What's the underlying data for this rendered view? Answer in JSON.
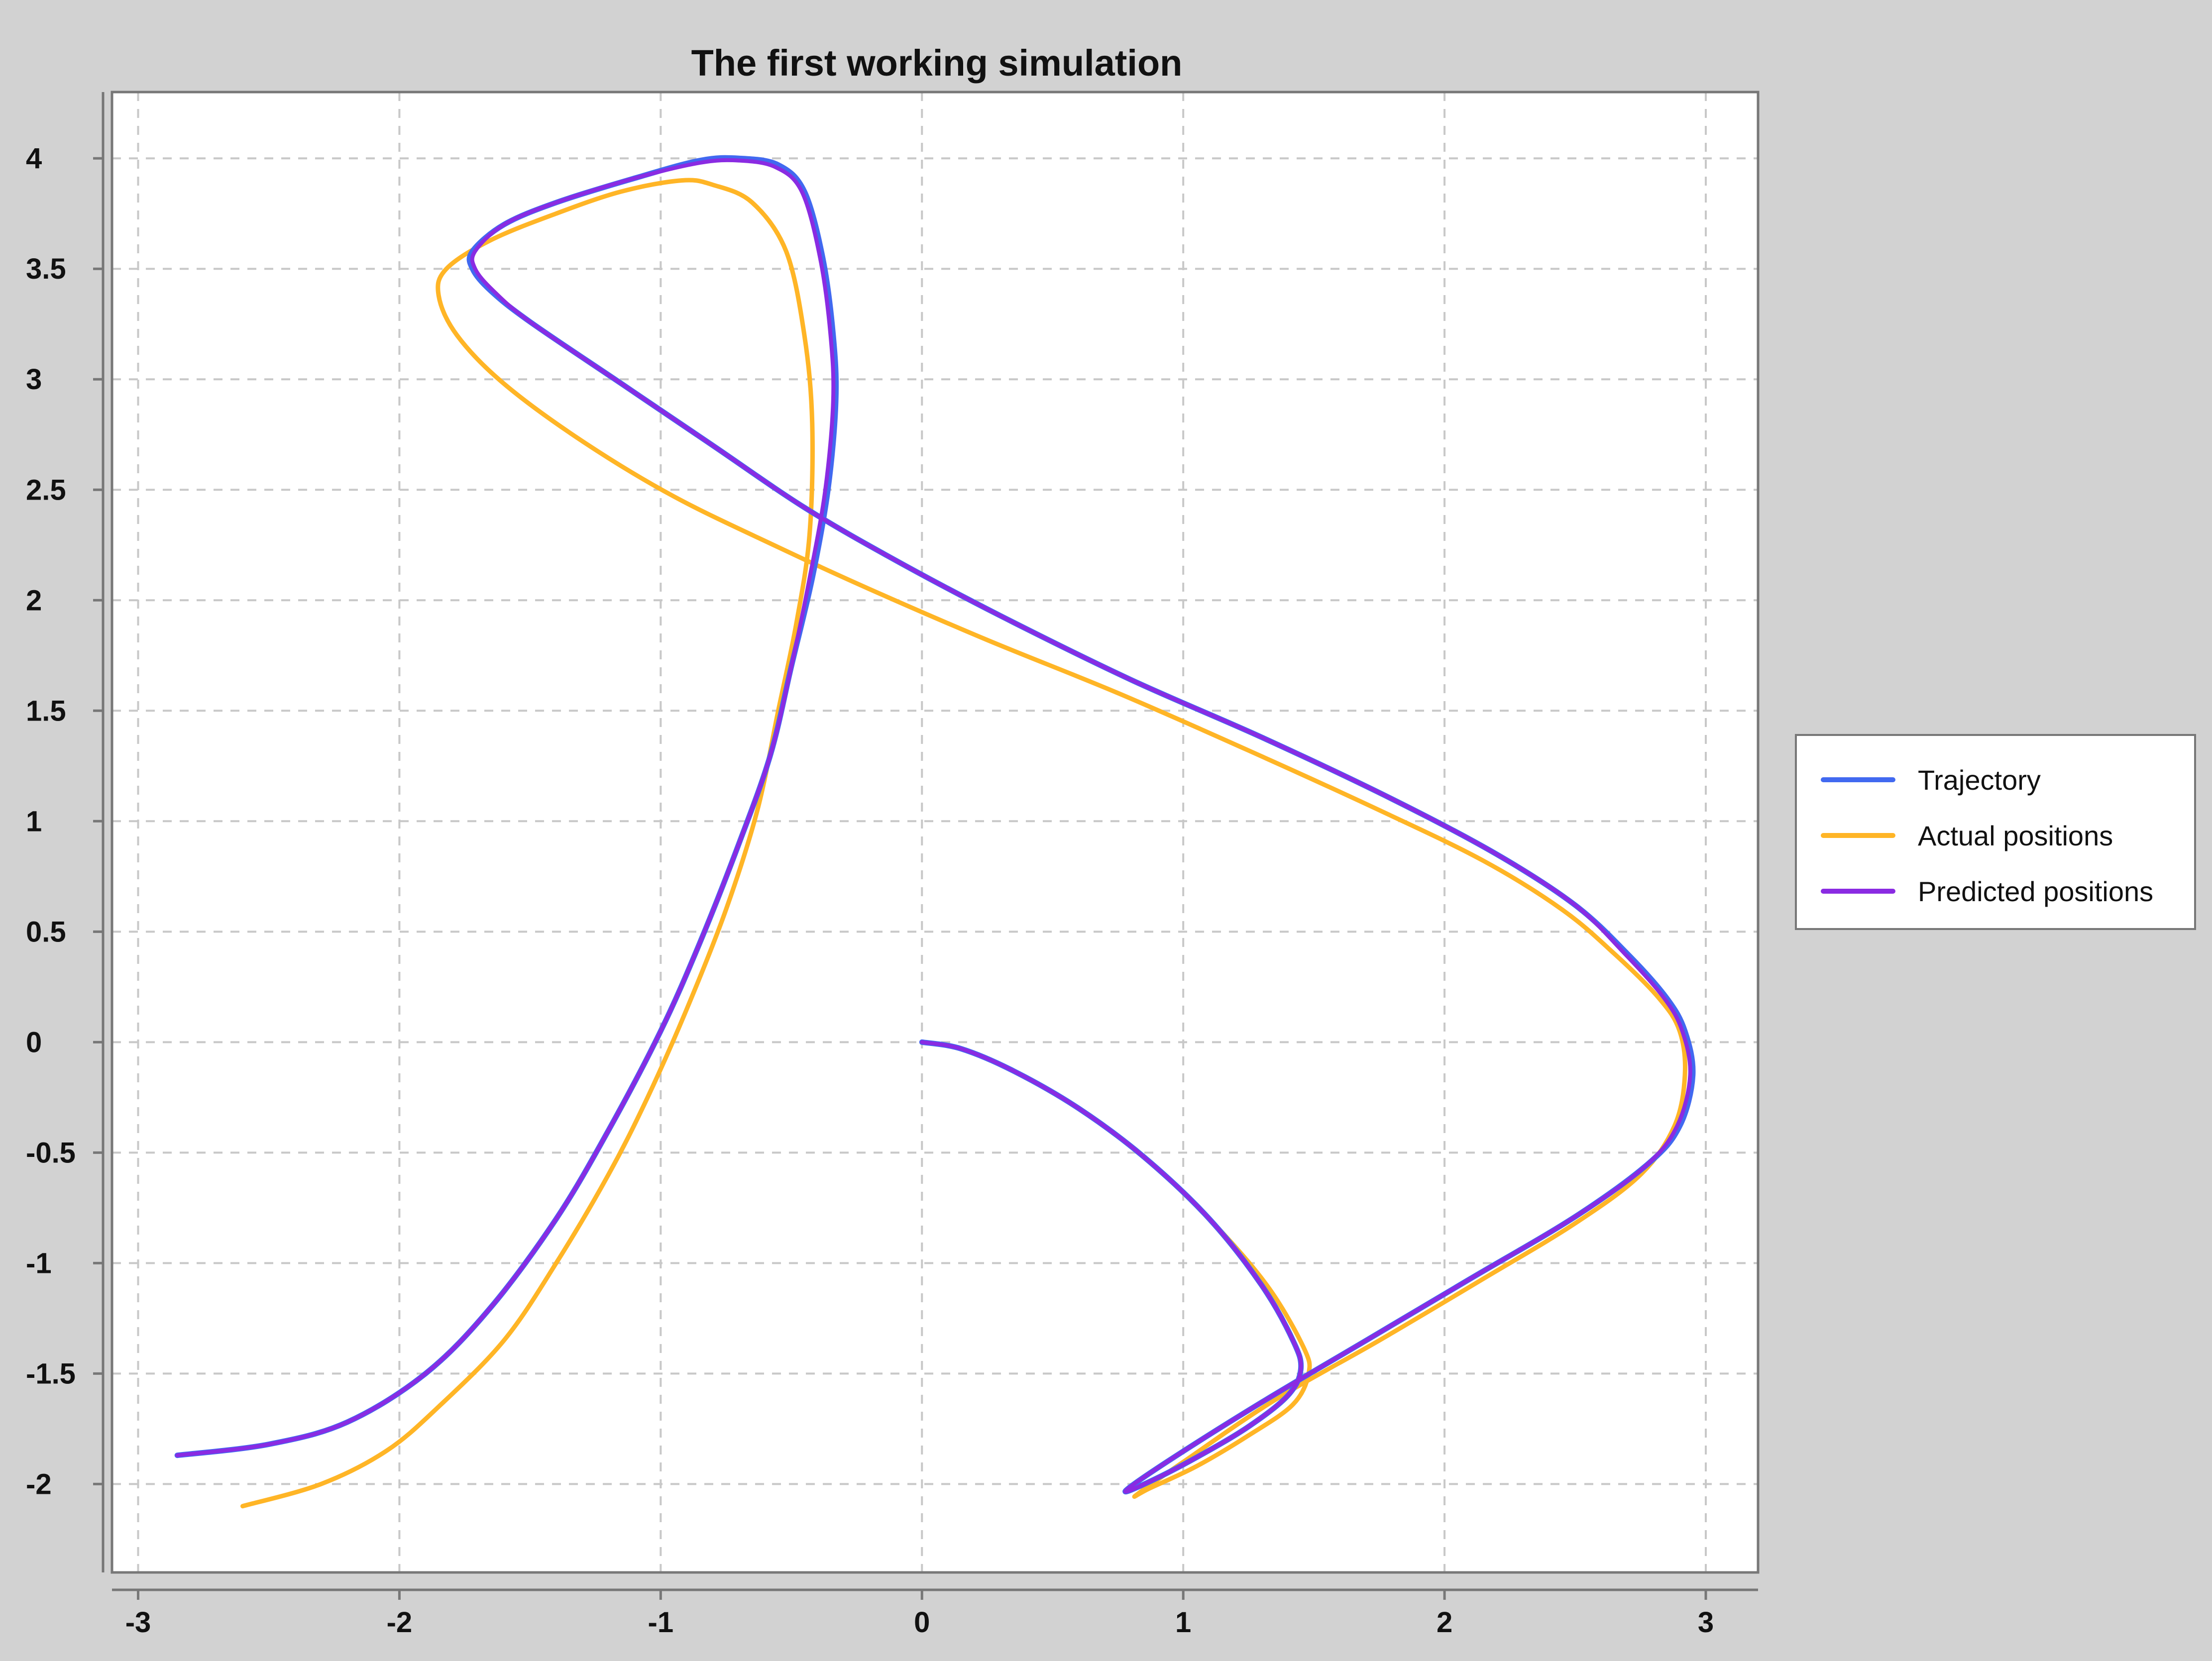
{
  "colors": {
    "background": "#d2d2d2",
    "plot_background": "#ffffff",
    "grid": "#c8c8c8",
    "axis": "#777777",
    "trajectory": "#4169f0",
    "actual": "#ffb526",
    "predicted": "#8a2be2"
  },
  "chart_data": {
    "type": "line",
    "title": "The first working simulation",
    "xlabel": "",
    "ylabel": "",
    "xlim": [
      -3.1,
      3.2
    ],
    "ylim": [
      -2.4,
      4.3
    ],
    "x_ticks": [
      -3,
      -2,
      -1,
      0,
      1,
      2,
      3
    ],
    "x_tick_labels": [
      "-3",
      "-2",
      "-1",
      "0",
      "1",
      "2",
      "3"
    ],
    "y_ticks": [
      -2,
      -1.5,
      -1,
      -0.5,
      0,
      0.5,
      1,
      1.5,
      2,
      2.5,
      3,
      3.5,
      4
    ],
    "y_tick_labels": [
      "-2",
      "-1.5",
      "-1",
      "-0.5",
      "0",
      "0.5",
      "1",
      "1.5",
      "2",
      "2.5",
      "3",
      "3.5",
      "4"
    ],
    "grid": true,
    "grid_style": "dashed",
    "legend_position": "right",
    "series": [
      {
        "name": "Trajectory",
        "color": "#4169f0",
        "points": [
          [
            0.0,
            0.0
          ],
          [
            0.15,
            -0.03
          ],
          [
            0.35,
            -0.13
          ],
          [
            0.6,
            -0.3
          ],
          [
            0.85,
            -0.52
          ],
          [
            1.1,
            -0.8
          ],
          [
            1.3,
            -1.1
          ],
          [
            1.42,
            -1.35
          ],
          [
            1.45,
            -1.48
          ],
          [
            1.4,
            -1.6
          ],
          [
            1.25,
            -1.74
          ],
          [
            1.05,
            -1.88
          ],
          [
            0.87,
            -1.99
          ],
          [
            0.78,
            -2.03
          ],
          [
            0.95,
            -1.89
          ],
          [
            1.3,
            -1.63
          ],
          [
            1.7,
            -1.35
          ],
          [
            2.1,
            -1.07
          ],
          [
            2.5,
            -0.79
          ],
          [
            2.78,
            -0.55
          ],
          [
            2.9,
            -0.38
          ],
          [
            2.95,
            -0.15
          ],
          [
            2.92,
            0.05
          ],
          [
            2.85,
            0.2
          ],
          [
            2.7,
            0.4
          ],
          [
            2.5,
            0.62
          ],
          [
            2.2,
            0.85
          ],
          [
            1.8,
            1.1
          ],
          [
            1.3,
            1.38
          ],
          [
            0.8,
            1.64
          ],
          [
            0.3,
            1.93
          ],
          [
            -0.1,
            2.18
          ],
          [
            -0.45,
            2.42
          ],
          [
            -0.8,
            2.7
          ],
          [
            -1.15,
            2.98
          ],
          [
            -1.5,
            3.26
          ],
          [
            -1.65,
            3.4
          ],
          [
            -1.72,
            3.5
          ],
          [
            -1.72,
            3.58
          ],
          [
            -1.6,
            3.7
          ],
          [
            -1.4,
            3.8
          ],
          [
            -1.1,
            3.91
          ],
          [
            -0.85,
            3.99
          ],
          [
            -0.7,
            4.0
          ],
          [
            -0.55,
            3.97
          ],
          [
            -0.45,
            3.85
          ],
          [
            -0.38,
            3.55
          ],
          [
            -0.34,
            3.2
          ],
          [
            -0.33,
            2.9
          ],
          [
            -0.36,
            2.5
          ],
          [
            -0.42,
            2.1
          ],
          [
            -0.5,
            1.7
          ],
          [
            -0.58,
            1.3
          ],
          [
            -0.7,
            0.9
          ],
          [
            -0.85,
            0.45
          ],
          [
            -1.0,
            0.05
          ],
          [
            -1.2,
            -0.4
          ],
          [
            -1.4,
            -0.8
          ],
          [
            -1.65,
            -1.2
          ],
          [
            -1.9,
            -1.5
          ],
          [
            -2.2,
            -1.72
          ],
          [
            -2.5,
            -1.82
          ],
          [
            -2.85,
            -1.87
          ]
        ]
      },
      {
        "name": "Actual positions",
        "color": "#ffb526",
        "points": [
          [
            0.0,
            0.0
          ],
          [
            0.15,
            -0.03
          ],
          [
            0.35,
            -0.13
          ],
          [
            0.6,
            -0.3
          ],
          [
            0.85,
            -0.52
          ],
          [
            1.1,
            -0.8
          ],
          [
            1.32,
            -1.1
          ],
          [
            1.46,
            -1.38
          ],
          [
            1.48,
            -1.5
          ],
          [
            1.42,
            -1.64
          ],
          [
            1.25,
            -1.78
          ],
          [
            1.05,
            -1.92
          ],
          [
            0.87,
            -2.02
          ],
          [
            0.82,
            -2.05
          ],
          [
            1.0,
            -1.9
          ],
          [
            1.35,
            -1.62
          ],
          [
            1.75,
            -1.35
          ],
          [
            2.15,
            -1.07
          ],
          [
            2.5,
            -0.82
          ],
          [
            2.75,
            -0.6
          ],
          [
            2.88,
            -0.38
          ],
          [
            2.92,
            -0.15
          ],
          [
            2.9,
            0.05
          ],
          [
            2.82,
            0.2
          ],
          [
            2.65,
            0.4
          ],
          [
            2.45,
            0.6
          ],
          [
            2.15,
            0.82
          ],
          [
            1.75,
            1.05
          ],
          [
            1.25,
            1.32
          ],
          [
            0.75,
            1.58
          ],
          [
            0.25,
            1.82
          ],
          [
            -0.2,
            2.05
          ],
          [
            -0.55,
            2.24
          ],
          [
            -0.95,
            2.47
          ],
          [
            -1.3,
            2.72
          ],
          [
            -1.6,
            2.98
          ],
          [
            -1.78,
            3.2
          ],
          [
            -1.85,
            3.38
          ],
          [
            -1.82,
            3.5
          ],
          [
            -1.65,
            3.63
          ],
          [
            -1.4,
            3.75
          ],
          [
            -1.15,
            3.85
          ],
          [
            -0.92,
            3.9
          ],
          [
            -0.8,
            3.88
          ],
          [
            -0.65,
            3.8
          ],
          [
            -0.52,
            3.58
          ],
          [
            -0.45,
            3.2
          ],
          [
            -0.42,
            2.8
          ],
          [
            -0.43,
            2.3
          ],
          [
            -0.48,
            1.9
          ],
          [
            -0.55,
            1.5
          ],
          [
            -0.63,
            1.05
          ],
          [
            -0.75,
            0.6
          ],
          [
            -0.9,
            0.15
          ],
          [
            -1.05,
            -0.25
          ],
          [
            -1.2,
            -0.6
          ],
          [
            -1.4,
            -1.0
          ],
          [
            -1.6,
            -1.35
          ],
          [
            -1.85,
            -1.65
          ],
          [
            -2.05,
            -1.85
          ],
          [
            -2.3,
            -2.0
          ],
          [
            -2.6,
            -2.1
          ]
        ]
      },
      {
        "name": "Predicted positions",
        "color": "#8a2be2",
        "points": [
          [
            0.0,
            0.0
          ],
          [
            0.15,
            -0.03
          ],
          [
            0.35,
            -0.13
          ],
          [
            0.6,
            -0.3
          ],
          [
            0.85,
            -0.52
          ],
          [
            1.1,
            -0.8
          ],
          [
            1.3,
            -1.1
          ],
          [
            1.42,
            -1.35
          ],
          [
            1.45,
            -1.48
          ],
          [
            1.4,
            -1.6
          ],
          [
            1.25,
            -1.74
          ],
          [
            1.05,
            -1.88
          ],
          [
            0.87,
            -1.99
          ],
          [
            0.78,
            -2.03
          ],
          [
            0.95,
            -1.89
          ],
          [
            1.3,
            -1.63
          ],
          [
            1.7,
            -1.35
          ],
          [
            2.1,
            -1.07
          ],
          [
            2.5,
            -0.79
          ],
          [
            2.77,
            -0.56
          ],
          [
            2.89,
            -0.38
          ],
          [
            2.94,
            -0.15
          ],
          [
            2.91,
            0.05
          ],
          [
            2.84,
            0.2
          ],
          [
            2.69,
            0.4
          ],
          [
            2.5,
            0.62
          ],
          [
            2.2,
            0.85
          ],
          [
            1.8,
            1.1
          ],
          [
            1.3,
            1.38
          ],
          [
            0.8,
            1.64
          ],
          [
            0.3,
            1.93
          ],
          [
            -0.1,
            2.18
          ],
          [
            -0.45,
            2.42
          ],
          [
            -0.8,
            2.7
          ],
          [
            -1.15,
            2.98
          ],
          [
            -1.5,
            3.26
          ],
          [
            -1.64,
            3.4
          ],
          [
            -1.71,
            3.5
          ],
          [
            -1.71,
            3.58
          ],
          [
            -1.6,
            3.7
          ],
          [
            -1.4,
            3.8
          ],
          [
            -1.1,
            3.91
          ],
          [
            -0.85,
            3.98
          ],
          [
            -0.7,
            3.99
          ],
          [
            -0.56,
            3.96
          ],
          [
            -0.46,
            3.85
          ],
          [
            -0.39,
            3.55
          ],
          [
            -0.35,
            3.2
          ],
          [
            -0.34,
            2.9
          ],
          [
            -0.37,
            2.5
          ],
          [
            -0.43,
            2.1
          ],
          [
            -0.5,
            1.7
          ],
          [
            -0.58,
            1.3
          ],
          [
            -0.7,
            0.9
          ],
          [
            -0.85,
            0.45
          ],
          [
            -1.0,
            0.05
          ],
          [
            -1.2,
            -0.4
          ],
          [
            -1.4,
            -0.8
          ],
          [
            -1.65,
            -1.2
          ],
          [
            -1.9,
            -1.5
          ],
          [
            -2.2,
            -1.72
          ],
          [
            -2.5,
            -1.82
          ],
          [
            -2.85,
            -1.87
          ]
        ]
      }
    ]
  }
}
